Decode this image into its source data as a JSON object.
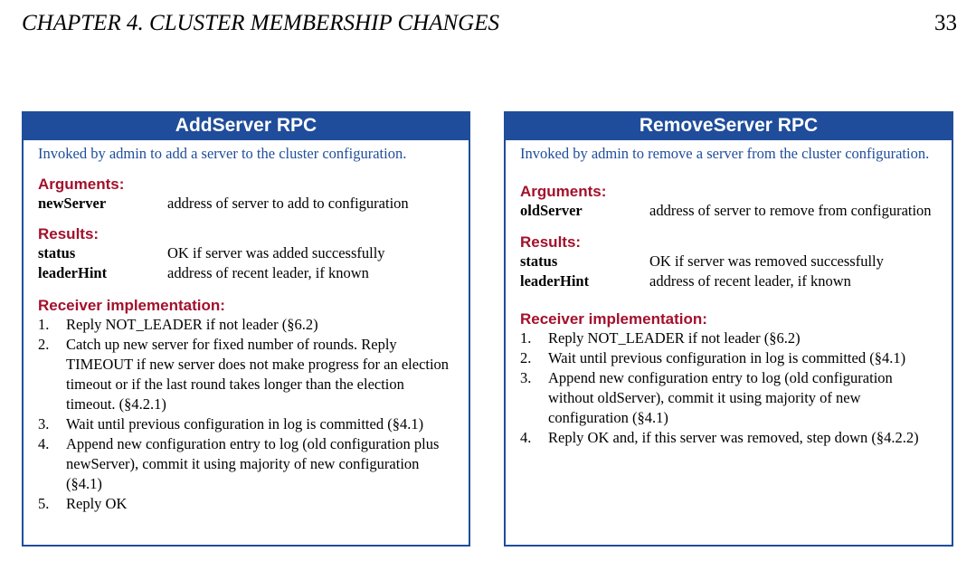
{
  "header": {
    "chapter": "CHAPTER 4.  CLUSTER MEMBERSHIP CHANGES",
    "page_number": "33"
  },
  "add_server": {
    "title": "AddServer RPC",
    "description": "Invoked by admin to add a server to the cluster configuration.",
    "arguments_heading": "Arguments:",
    "arguments": [
      {
        "name": "newServer",
        "desc": "address of server to add to configuration"
      }
    ],
    "results_heading": "Results:",
    "results": [
      {
        "name": "status",
        "desc": "OK if server was added successfully"
      },
      {
        "name": "leaderHint",
        "desc": "address of recent leader, if known"
      }
    ],
    "impl_heading": "Receiver implementation:",
    "steps": [
      {
        "num": "1.",
        "text": "Reply NOT_LEADER if not leader (§6.2)"
      },
      {
        "num": "2.",
        "text": "Catch up new server for fixed number of rounds. Reply TIMEOUT if new server does not make progress for an election timeout or if the last round takes longer than the election timeout. (§4.2.1)"
      },
      {
        "num": "3.",
        "text": "Wait until previous configuration in log is committed (§4.1)"
      },
      {
        "num": "4.",
        "text": "Append new configuration entry to log (old configuration plus newServer), commit it using majority of new configuration (§4.1)"
      },
      {
        "num": "5.",
        "text": "Reply OK"
      }
    ]
  },
  "remove_server": {
    "title": "RemoveServer RPC",
    "description": "Invoked by admin to remove a server from the cluster configuration.",
    "arguments_heading": "Arguments:",
    "arguments": [
      {
        "name": "oldServer",
        "desc": "address of server to remove from configuration"
      }
    ],
    "results_heading": "Results:",
    "results": [
      {
        "name": "status",
        "desc": "OK if server was removed successfully"
      },
      {
        "name": "leaderHint",
        "desc": "address of recent leader, if known"
      }
    ],
    "impl_heading": "Receiver implementation:",
    "steps": [
      {
        "num": "1.",
        "text": "Reply NOT_LEADER if not leader (§6.2)"
      },
      {
        "num": "2.",
        "text": "Wait until previous configuration in log is committed (§4.1)"
      },
      {
        "num": "3.",
        "text": "Append new configuration entry to log (old configuration without oldServer), commit it using majority of new configuration (§4.1)"
      },
      {
        "num": "4.",
        "text": "Reply OK and, if this server was removed, step down (§4.2.2)"
      }
    ]
  },
  "colors": {
    "accent_blue": "#1f4d9b",
    "heading_red": "#a3102b"
  }
}
